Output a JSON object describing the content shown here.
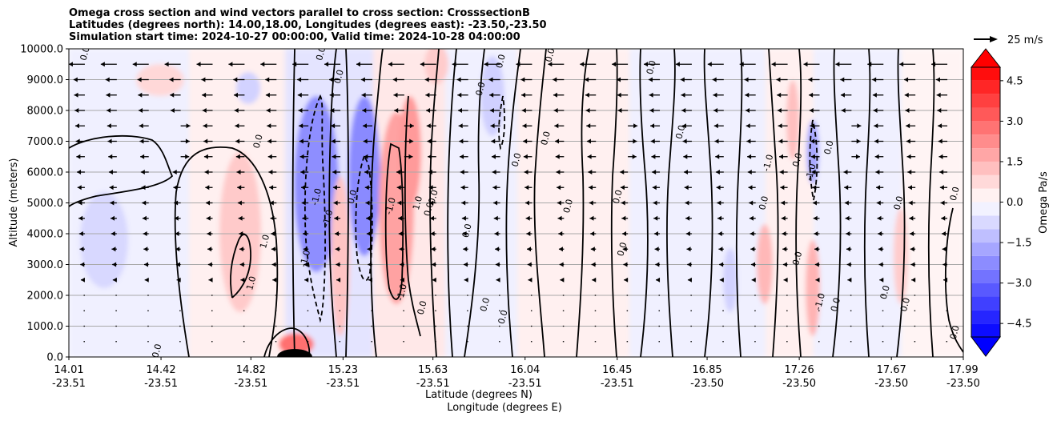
{
  "chart_data": {
    "type": "heatmap",
    "title_lines": [
      "Omega cross section and wind vectors parallel to cross section: CrosssectionB",
      "Latitudes (degrees north): 14.00,18.00, Longitudes (degrees east): -23.50,-23.50",
      "Simulation start time: 2024-10-27 00:00:00, Valid time: 2024-10-28 04:00:00"
    ],
    "ylabel": "Altitude (meters)",
    "xlabel_lines": [
      "Latitude (degrees N)",
      "Longitude (degrees E)"
    ],
    "ylim": [
      0,
      10000
    ],
    "xlim": [
      14.01,
      17.99
    ],
    "yticks": [
      0,
      1000,
      2000,
      3000,
      4000,
      5000,
      6000,
      7000,
      8000,
      9000,
      10000
    ],
    "ytick_labels": [
      "0.0",
      "1000.0",
      "2000.0",
      "3000.0",
      "4000.0",
      "5000.0",
      "6000.0",
      "7000.0",
      "8000.0",
      "9000.0",
      "10000.0"
    ],
    "xticks": [
      {
        "lat": "14.01",
        "lon": "-23.51",
        "value": 14.01
      },
      {
        "lat": "14.42",
        "lon": "-23.51",
        "value": 14.42
      },
      {
        "lat": "14.82",
        "lon": "-23.51",
        "value": 14.82
      },
      {
        "lat": "15.23",
        "lon": "-23.51",
        "value": 15.23
      },
      {
        "lat": "15.63",
        "lon": "-23.51",
        "value": 15.63
      },
      {
        "lat": "16.04",
        "lon": "-23.51",
        "value": 16.04
      },
      {
        "lat": "16.45",
        "lon": "-23.51",
        "value": 16.45
      },
      {
        "lat": "16.85",
        "lon": "-23.50",
        "value": 16.85
      },
      {
        "lat": "17.26",
        "lon": "-23.50",
        "value": 17.26
      },
      {
        "lat": "17.67",
        "lon": "-23.50",
        "value": 17.67
      },
      {
        "lat": "17.99",
        "lon": "-23.50",
        "value": 17.99
      }
    ],
    "colorbar": {
      "label": "Omega Pa/s",
      "range": [
        -5.0,
        5.0
      ],
      "ticks": [
        -4.5,
        -3.0,
        -1.5,
        0.0,
        1.5,
        3.0,
        4.5
      ],
      "tick_labels": [
        "−4.5",
        "−3.0",
        "−1.5",
        "0.0",
        "1.5",
        "3.0",
        "4.5"
      ],
      "extend": "both",
      "negative_color": "#0000ff",
      "positive_color": "#ff0000",
      "neutral_color": "#ffffff"
    },
    "quiver_key": {
      "label": "25 m/s",
      "speed": 25
    },
    "contour_levels": [
      -1.0,
      0.0,
      1.0
    ],
    "contour_labels": [
      {
        "text": "0.0",
        "x": 14.08,
        "y": 9850
      },
      {
        "text": "0.0",
        "x": 14.85,
        "y": 7000
      },
      {
        "text": "0.0",
        "x": 15.13,
        "y": 9850
      },
      {
        "text": "0.0",
        "x": 15.21,
        "y": 9100
      },
      {
        "text": "1.0",
        "x": 14.88,
        "y": 3750
      },
      {
        "text": "1.0",
        "x": 14.82,
        "y": 2400
      },
      {
        "text": "-1.0",
        "x": 15.06,
        "y": 3200
      },
      {
        "text": "-1.0",
        "x": 15.11,
        "y": 5200
      },
      {
        "text": "-1.0",
        "x": 15.16,
        "y": 4500
      },
      {
        "text": "0.0",
        "x": 15.27,
        "y": 5200
      },
      {
        "text": "-1.0",
        "x": 15.44,
        "y": 4900
      },
      {
        "text": "1.0",
        "x": 15.56,
        "y": 5000
      },
      {
        "text": "0.0",
        "x": 15.63,
        "y": 5200
      },
      {
        "text": "0.0",
        "x": 15.61,
        "y": 4800
      },
      {
        "text": "-1.0",
        "x": 15.49,
        "y": 2100
      },
      {
        "text": "0.0",
        "x": 15.58,
        "y": 1600
      },
      {
        "text": "0.0",
        "x": 15.78,
        "y": 4100
      },
      {
        "text": "0.0",
        "x": 15.84,
        "y": 8700
      },
      {
        "text": "0.0",
        "x": 15.93,
        "y": 9600
      },
      {
        "text": "0.0",
        "x": 16.0,
        "y": 6400
      },
      {
        "text": "0.0",
        "x": 16.13,
        "y": 7100
      },
      {
        "text": "0.0",
        "x": 16.15,
        "y": 9800
      },
      {
        "text": "0.0",
        "x": 16.23,
        "y": 4900
      },
      {
        "text": "0.0",
        "x": 15.86,
        "y": 1700
      },
      {
        "text": "0.0",
        "x": 15.94,
        "y": 1300
      },
      {
        "text": "0.0",
        "x": 16.45,
        "y": 5200
      },
      {
        "text": "0.0",
        "x": 16.47,
        "y": 3500
      },
      {
        "text": "0.0",
        "x": 16.6,
        "y": 9400
      },
      {
        "text": "0.0",
        "x": 16.73,
        "y": 7300
      },
      {
        "text": "0.0",
        "x": 17.1,
        "y": 5000
      },
      {
        "text": "-1.0",
        "x": 17.12,
        "y": 6300
      },
      {
        "text": "0.0",
        "x": 17.25,
        "y": 6400
      },
      {
        "text": "-1.0",
        "x": 17.31,
        "y": 6000
      },
      {
        "text": "0.0",
        "x": 17.39,
        "y": 6800
      },
      {
        "text": "0.0",
        "x": 17.25,
        "y": 3200
      },
      {
        "text": "-1.0",
        "x": 17.35,
        "y": 1800
      },
      {
        "text": "0.0",
        "x": 17.42,
        "y": 1700
      },
      {
        "text": "0.0",
        "x": 17.64,
        "y": 2100
      },
      {
        "text": "0.0",
        "x": 17.7,
        "y": 5000
      },
      {
        "text": "0.0",
        "x": 17.95,
        "y": 5300
      },
      {
        "text": "0.0",
        "x": 17.73,
        "y": 1700
      },
      {
        "text": "0.0",
        "x": 17.95,
        "y": 800
      },
      {
        "text": "0.0",
        "x": 14.4,
        "y": 200
      }
    ]
  }
}
